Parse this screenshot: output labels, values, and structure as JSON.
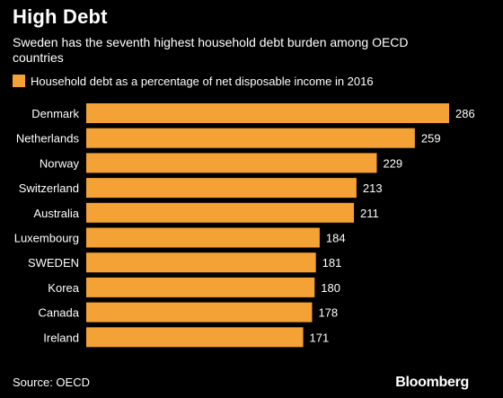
{
  "header": {
    "title": "High Debt",
    "subtitle": "Sweden has the seventh highest household debt burden among OECD countries"
  },
  "footer": {
    "source": "Source: OECD",
    "brand": "Bloomberg"
  },
  "colors": {
    "bar": "#F4A235",
    "background": "#000000",
    "text": "#FFFFFF"
  },
  "chart_data": {
    "type": "bar",
    "orientation": "horizontal",
    "series": [
      {
        "name": "Household debt as a percentage of net disposable income in 2016",
        "values": [
          286,
          259,
          229,
          213,
          211,
          184,
          181,
          180,
          178,
          171
        ]
      }
    ],
    "categories": [
      "Denmark",
      "Netherlands",
      "Norway",
      "Switzerland",
      "Australia",
      "Luxembourg",
      "SWEDEN",
      "Korea",
      "Canada",
      "Ireland"
    ],
    "data_labels": [
      "286",
      "259",
      "229",
      "213",
      "211",
      "184",
      "181",
      "180",
      "178",
      "171"
    ],
    "xlim": [
      0,
      286
    ],
    "legend_position": "top-left",
    "grid": false
  }
}
